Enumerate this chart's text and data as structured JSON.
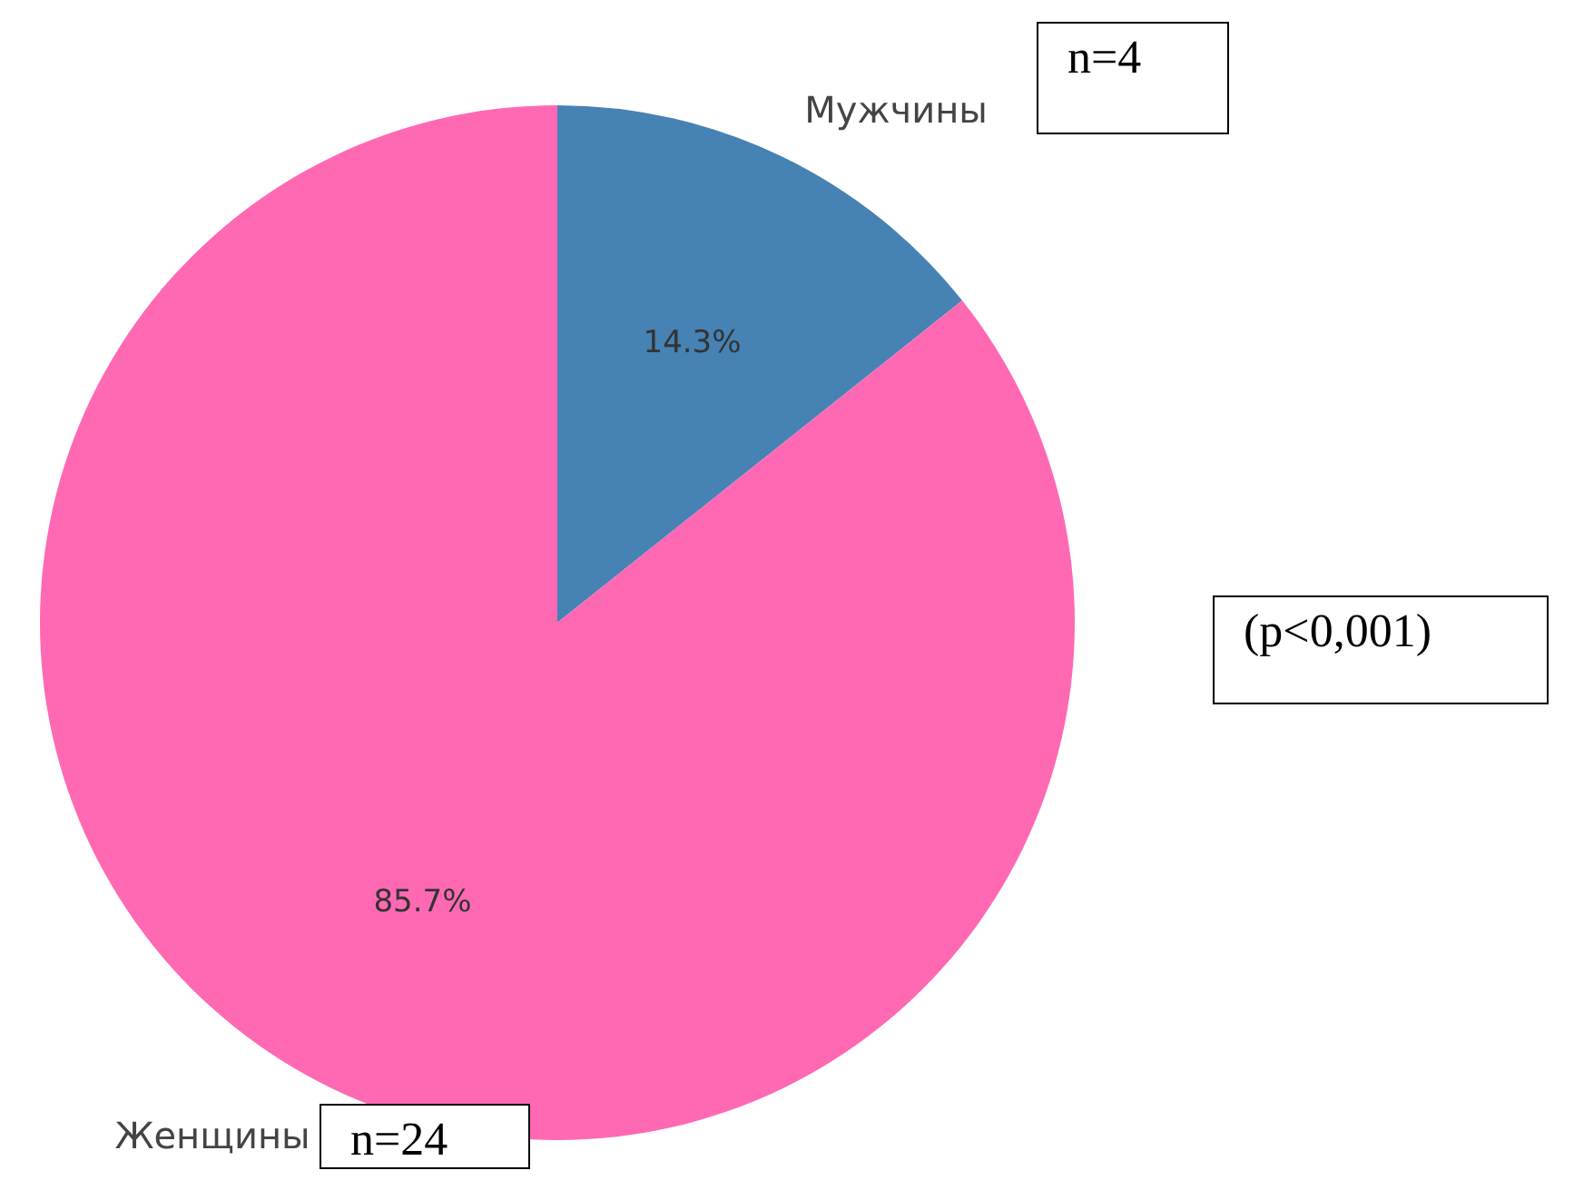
{
  "chart_data": {
    "type": "pie",
    "categories": [
      "Мужчины",
      "Женщины"
    ],
    "values": [
      14.3,
      85.7
    ],
    "colors": [
      "#4682b4",
      "#ff69b4"
    ],
    "value_labels": [
      "14.3%",
      "85.7%"
    ],
    "annotations": [
      "n=4",
      "(p<0,001)",
      "n=24"
    ]
  }
}
